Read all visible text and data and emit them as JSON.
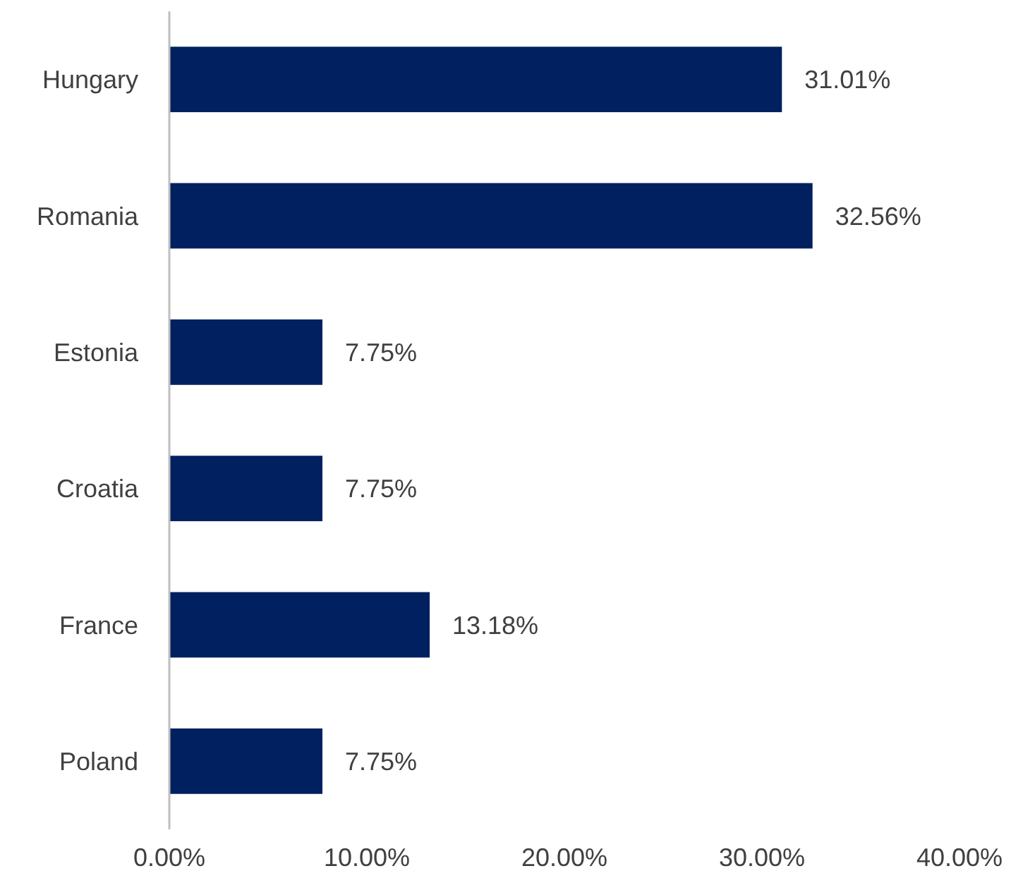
{
  "chart_data": {
    "type": "bar",
    "orientation": "horizontal",
    "categories": [
      "Hungary",
      "Romania",
      "Estonia",
      "Croatia",
      "France",
      "Poland"
    ],
    "values": [
      31.01,
      32.56,
      7.75,
      7.75,
      13.18,
      7.75
    ],
    "value_labels": [
      "31.01%",
      "32.56%",
      "7.75%",
      "7.75%",
      "13.18%",
      "7.75%"
    ],
    "color": "#002060",
    "xlim": [
      0,
      40
    ],
    "xticks": [
      {
        "value": 0,
        "label": "0.00%"
      },
      {
        "value": 10,
        "label": "10.00%"
      },
      {
        "value": 20,
        "label": "20.00%"
      },
      {
        "value": 30,
        "label": "30.00%"
      },
      {
        "value": 40,
        "label": "40.00%"
      }
    ],
    "grid": false
  }
}
